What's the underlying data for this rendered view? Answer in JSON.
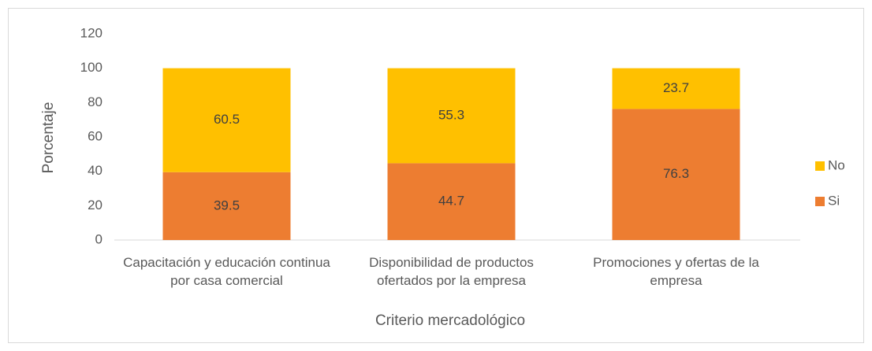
{
  "chart_data": {
    "type": "stacked_bar",
    "categories": [
      "Capacitación y educación continua por casa comercial",
      "Disponibilidad de productos ofertados por la empresa",
      "Promociones y ofertas de la empresa"
    ],
    "series": [
      {
        "name": "Si",
        "color": "#ED7D31",
        "values": [
          39.5,
          44.7,
          76.3
        ]
      },
      {
        "name": "No",
        "color": "#FFC000",
        "values": [
          60.5,
          55.3,
          23.7
        ]
      }
    ],
    "xlabel": "Criterio mercadológico",
    "ylabel": "Porcentaje",
    "ylim": [
      0,
      120
    ],
    "yticks": [
      0,
      20,
      40,
      60,
      80,
      100,
      120
    ],
    "grid": false,
    "legend": "right"
  }
}
